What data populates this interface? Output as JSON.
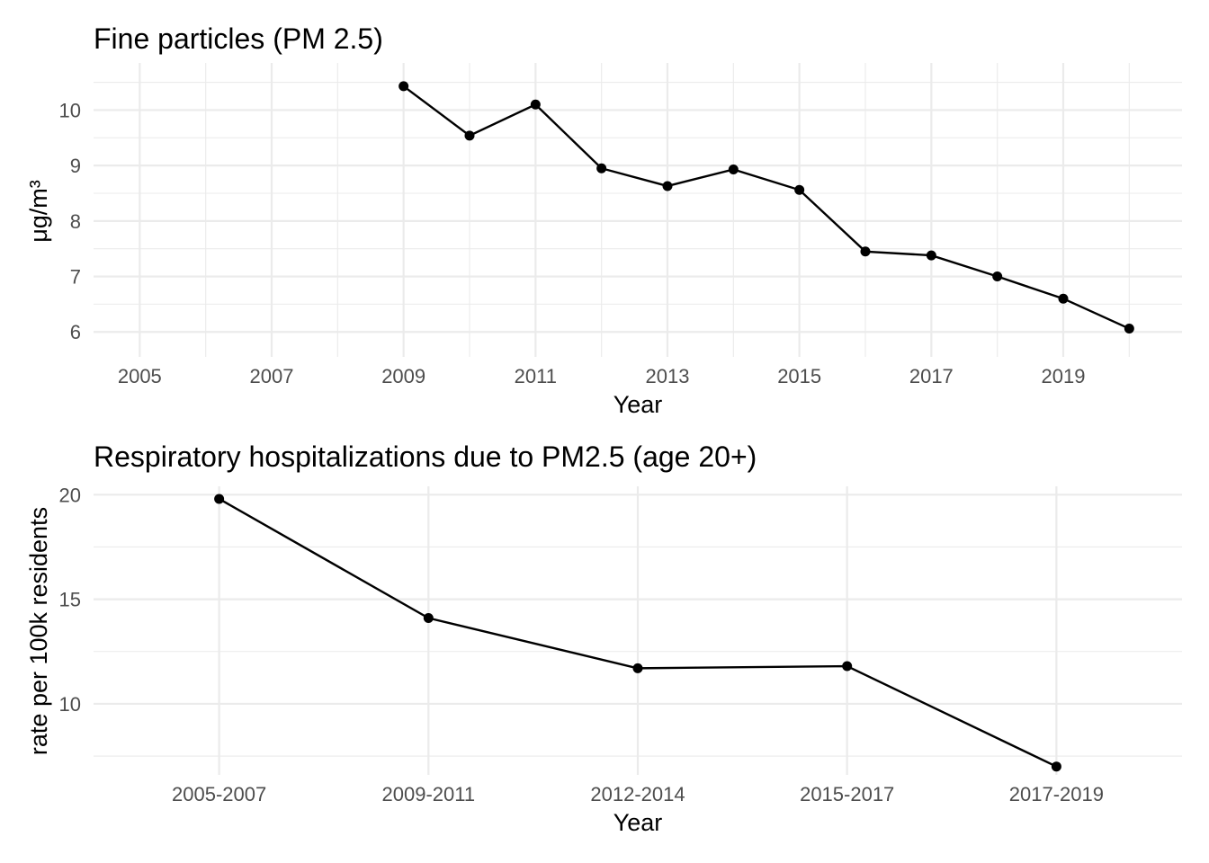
{
  "chart_data": [
    {
      "type": "line",
      "title": "Fine particles (PM 2.5)",
      "xlabel": "Year",
      "ylabel": "μg/m³",
      "x": [
        2009,
        2010,
        2011,
        2012,
        2013,
        2014,
        2015,
        2016,
        2017,
        2018,
        2019,
        2020
      ],
      "values": [
        10.43,
        9.54,
        10.1,
        8.95,
        8.63,
        8.93,
        8.56,
        7.45,
        7.38,
        7.0,
        6.6,
        6.06
      ],
      "xlim": [
        2004.3,
        2020.8
      ],
      "ylim": [
        5.55,
        10.85
      ],
      "x_ticks": [
        "2005",
        "2007",
        "2009",
        "2011",
        "2013",
        "2015",
        "2017",
        "2019"
      ],
      "y_ticks": [
        "6",
        "7",
        "8",
        "9",
        "10"
      ],
      "grid": true,
      "markers": true
    },
    {
      "type": "line",
      "title": "Respiratory hospitalizations due to PM2.5 (age 20+)",
      "xlabel": "Year",
      "ylabel": "rate per 100k residents",
      "categories": [
        "2005-2007",
        "2009-2011",
        "2012-2014",
        "2015-2017",
        "2017-2019"
      ],
      "values": [
        19.8,
        14.1,
        11.7,
        11.8,
        7.0
      ],
      "ylim": [
        6.6,
        20.4
      ],
      "y_ticks": [
        "10",
        "15",
        "20"
      ],
      "grid": true,
      "markers": true
    }
  ]
}
